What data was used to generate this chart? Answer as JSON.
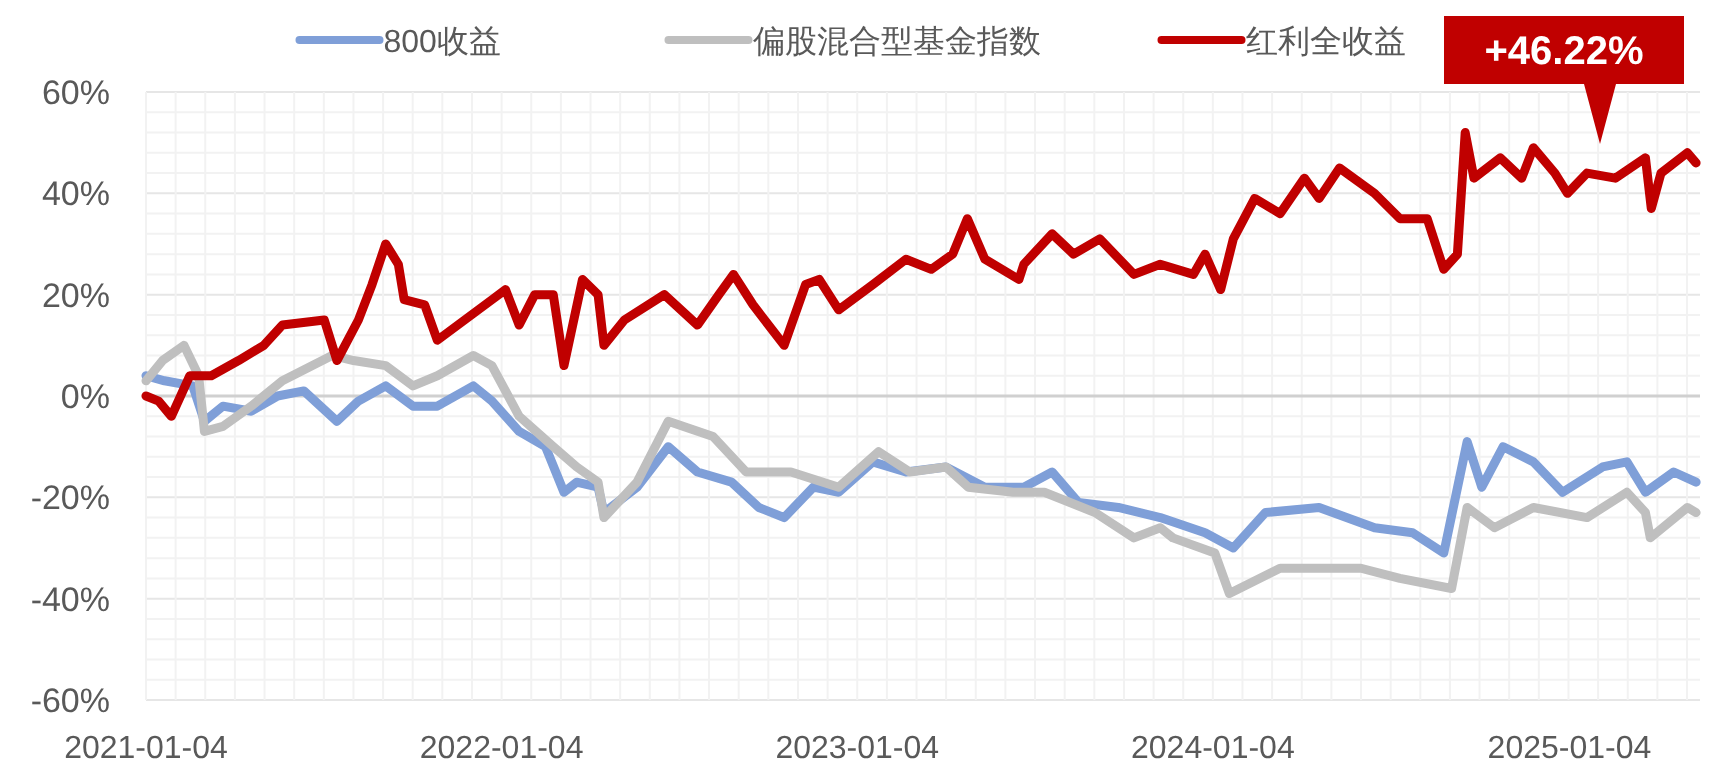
{
  "chart_data": {
    "type": "line",
    "legend": "top",
    "grid": true,
    "ylim": [
      -60,
      60
    ],
    "yticks": [
      {
        "value": -60,
        "label": "-60%"
      },
      {
        "value": -40,
        "label": "-40%"
      },
      {
        "value": -20,
        "label": "-20%"
      },
      {
        "value": 0,
        "label": "0%"
      },
      {
        "value": 20,
        "label": "20%"
      },
      {
        "value": 40,
        "label": "40%"
      },
      {
        "value": 60,
        "label": "60%"
      }
    ],
    "xlim": [
      "2021-01-04",
      "2025-05-18"
    ],
    "xticks": [
      {
        "value": "2021-01-04",
        "label": "2021-01-04"
      },
      {
        "value": "2022-01-04",
        "label": "2022-01-04"
      },
      {
        "value": "2023-01-04",
        "label": "2023-01-04"
      },
      {
        "value": "2024-01-04",
        "label": "2024-01-04"
      },
      {
        "value": "2025-01-04",
        "label": "2025-01-04"
      }
    ],
    "annotations": [
      "+46.22%"
    ],
    "series": [
      {
        "name": "800收益",
        "color": "#7f9fd8",
        "x": [
          "2021-01-04",
          "2021-01-23",
          "2021-02-21",
          "2021-03-05",
          "2021-03-24",
          "2021-04-22",
          "2021-05-19",
          "2021-06-15",
          "2021-07-19",
          "2021-08-10",
          "2021-09-07",
          "2021-10-05",
          "2021-10-30",
          "2021-12-06",
          "2021-12-25",
          "2022-01-22",
          "2022-02-18",
          "2022-03-09",
          "2022-03-22",
          "2022-04-13",
          "2022-04-19",
          "2022-05-23",
          "2022-06-24",
          "2022-07-24",
          "2022-08-28",
          "2022-09-25",
          "2022-10-21",
          "2022-11-20",
          "2022-12-16",
          "2023-01-20",
          "2023-02-23",
          "2023-04-05",
          "2023-05-15",
          "2023-06-24",
          "2023-07-23",
          "2023-08-19",
          "2023-09-29",
          "2023-11-11",
          "2023-12-27",
          "2024-01-25",
          "2024-02-27",
          "2024-04-22",
          "2024-06-18",
          "2024-07-27",
          "2024-08-28",
          "2024-09-21",
          "2024-10-06",
          "2024-10-28",
          "2024-11-28",
          "2024-12-28",
          "2025-02-07",
          "2025-03-04",
          "2025-03-23",
          "2025-04-21",
          "2025-05-14"
        ],
        "values": [
          4,
          3,
          2,
          -5,
          -2,
          -3,
          0,
          1,
          -5,
          -1,
          2,
          -2,
          -2,
          2,
          -1,
          -7,
          -10,
          -19,
          -17,
          -18,
          -23,
          -18,
          -10,
          -15,
          -17,
          -22,
          -24,
          -18,
          -19,
          -13,
          -15,
          -14,
          -18,
          -18,
          -15,
          -21,
          -22,
          -24,
          -27,
          -30,
          -23,
          -22,
          -26,
          -27,
          -31,
          -9,
          -18,
          -10,
          -13,
          -19,
          -14,
          -13,
          -19,
          -15,
          -17
        ]
      },
      {
        "name": "偏股混合型基金指数",
        "color": "#bfbfbf",
        "x": [
          "2021-01-04",
          "2021-01-21",
          "2021-02-12",
          "2021-02-27",
          "2021-03-05",
          "2021-03-24",
          "2021-04-22",
          "2021-05-24",
          "2021-07-14",
          "2021-08-05",
          "2021-09-07",
          "2021-10-05",
          "2021-10-30",
          "2021-12-06",
          "2021-12-25",
          "2022-01-22",
          "2022-02-26",
          "2022-03-22",
          "2022-04-13",
          "2022-04-19",
          "2022-05-23",
          "2022-06-24",
          "2022-08-09",
          "2022-09-12",
          "2022-10-28",
          "2022-12-16",
          "2023-01-26",
          "2023-02-27",
          "2023-04-05",
          "2023-04-28",
          "2023-06-13",
          "2023-07-15",
          "2023-09-05",
          "2023-10-15",
          "2023-11-11",
          "2023-11-24",
          "2024-01-06",
          "2024-01-21",
          "2024-03-13",
          "2024-06-04",
          "2024-07-14",
          "2024-09-05",
          "2024-09-21",
          "2024-10-19",
          "2024-11-28",
          "2025-01-22",
          "2025-03-04",
          "2025-03-23",
          "2025-03-28",
          "2025-05-05",
          "2025-05-14"
        ],
        "values": [
          3,
          7,
          10,
          4,
          -7,
          -6,
          -2,
          3,
          8,
          7,
          6,
          2,
          4,
          8,
          6,
          -4,
          -10,
          -14,
          -17,
          -24,
          -17,
          -5,
          -8,
          -15,
          -15,
          -18,
          -11,
          -15,
          -14,
          -18,
          -19,
          -19,
          -23,
          -28,
          -26,
          -28,
          -31,
          -39,
          -34,
          -34,
          -36,
          -38,
          -22,
          -26,
          -22,
          -24,
          -19,
          -23,
          -28,
          -22,
          -23
        ]
      },
      {
        "name": "红利全收益",
        "color": "#c00000",
        "x": [
          "2021-01-04",
          "2021-01-17",
          "2021-01-30",
          "2021-02-18",
          "2021-03-12",
          "2021-04-09",
          "2021-05-05",
          "2021-05-24",
          "2021-07-06",
          "2021-07-19",
          "2021-08-10",
          "2021-08-24",
          "2021-09-07",
          "2021-09-20",
          "2021-09-26",
          "2021-10-17",
          "2021-10-30",
          "2021-11-27",
          "2021-12-25",
          "2022-01-08",
          "2022-01-22",
          "2022-02-07",
          "2022-02-26",
          "2022-03-09",
          "2022-03-28",
          "2022-04-13",
          "2022-04-19",
          "2022-05-10",
          "2022-06-20",
          "2022-07-24",
          "2022-08-15",
          "2022-08-30",
          "2022-09-19",
          "2022-10-21",
          "2022-11-12",
          "2022-11-26",
          "2022-12-16",
          "2023-01-20",
          "2023-02-23",
          "2023-03-21",
          "2023-04-12",
          "2023-04-27",
          "2023-05-15",
          "2023-06-19",
          "2023-06-24",
          "2023-07-23",
          "2023-08-14",
          "2023-09-10",
          "2023-10-15",
          "2023-11-11",
          "2023-12-15",
          "2023-12-27",
          "2024-01-12",
          "2024-01-25",
          "2024-02-16",
          "2024-03-13",
          "2024-04-07",
          "2024-04-22",
          "2024-05-13",
          "2024-06-18",
          "2024-07-14",
          "2024-08-11",
          "2024-08-28",
          "2024-09-11",
          "2024-09-19",
          "2024-09-28",
          "2024-10-25",
          "2024-11-16",
          "2024-11-28",
          "2024-12-20",
          "2025-01-02",
          "2025-01-22",
          "2025-02-20",
          "2025-03-23",
          "2025-03-29",
          "2025-04-08",
          "2025-05-05",
          "2025-05-14"
        ],
        "values": [
          0,
          -1,
          -4,
          4,
          4,
          7,
          10,
          14,
          15,
          7,
          15,
          22,
          30,
          26,
          19,
          18,
          11,
          15,
          19,
          21,
          14,
          20,
          20,
          6,
          23,
          20,
          10,
          15,
          20,
          14,
          20,
          24,
          18,
          10,
          22,
          23,
          17,
          22,
          27,
          25,
          28,
          35,
          27,
          23,
          26,
          32,
          28,
          31,
          24,
          26,
          24,
          28,
          21,
          31,
          39,
          36,
          43,
          39,
          45,
          40,
          35,
          35,
          25,
          28,
          52,
          43,
          47,
          43,
          49,
          44,
          40,
          44,
          43,
          47,
          37,
          44,
          48,
          46
        ]
      }
    ]
  }
}
